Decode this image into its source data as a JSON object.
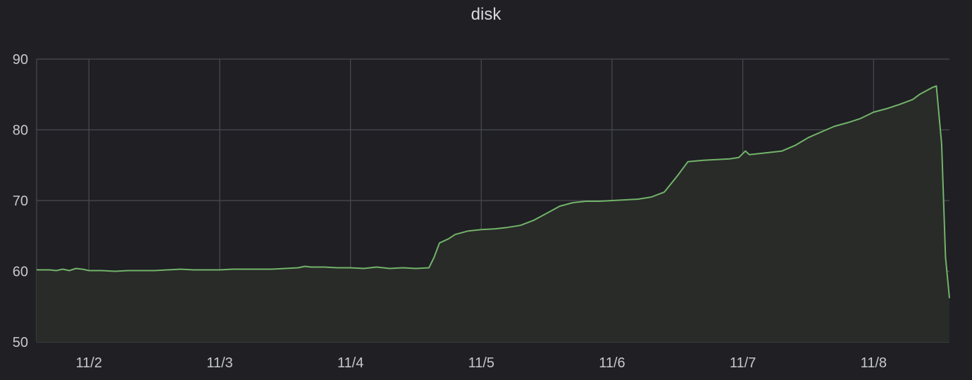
{
  "panel": {
    "title": "disk"
  },
  "colors": {
    "background": "#1f1f24",
    "grid": "#4a4b50",
    "text": "#c7c8cc",
    "series": "#73b36a",
    "area": "#282b28"
  },
  "chart_data": {
    "type": "area",
    "title": "disk",
    "xlabel": "",
    "ylabel": "",
    "ylim": [
      50,
      90
    ],
    "xlim": [
      1.6,
      8.58
    ],
    "y_ticks": [
      90,
      80,
      70,
      60,
      50
    ],
    "x_ticks": [
      {
        "value": 2,
        "label": "11/2"
      },
      {
        "value": 3,
        "label": "11/3"
      },
      {
        "value": 4,
        "label": "11/4"
      },
      {
        "value": 5,
        "label": "11/5"
      },
      {
        "value": 6,
        "label": "11/6"
      },
      {
        "value": 7,
        "label": "11/7"
      },
      {
        "value": 8,
        "label": "11/8"
      }
    ],
    "grid": true,
    "legend": "none",
    "series": [
      {
        "points": [
          [
            1.6,
            60.2
          ],
          [
            1.65,
            60.2
          ],
          [
            1.7,
            60.2
          ],
          [
            1.75,
            60.1
          ],
          [
            1.8,
            60.3
          ],
          [
            1.85,
            60.1
          ],
          [
            1.9,
            60.4
          ],
          [
            1.95,
            60.3
          ],
          [
            2.0,
            60.1
          ],
          [
            2.1,
            60.1
          ],
          [
            2.2,
            60.0
          ],
          [
            2.3,
            60.1
          ],
          [
            2.4,
            60.1
          ],
          [
            2.5,
            60.1
          ],
          [
            2.6,
            60.2
          ],
          [
            2.7,
            60.3
          ],
          [
            2.8,
            60.2
          ],
          [
            2.9,
            60.2
          ],
          [
            3.0,
            60.2
          ],
          [
            3.1,
            60.3
          ],
          [
            3.2,
            60.3
          ],
          [
            3.3,
            60.3
          ],
          [
            3.4,
            60.3
          ],
          [
            3.5,
            60.4
          ],
          [
            3.6,
            60.5
          ],
          [
            3.65,
            60.7
          ],
          [
            3.7,
            60.6
          ],
          [
            3.8,
            60.6
          ],
          [
            3.9,
            60.5
          ],
          [
            4.0,
            60.5
          ],
          [
            4.1,
            60.4
          ],
          [
            4.2,
            60.6
          ],
          [
            4.3,
            60.4
          ],
          [
            4.4,
            60.5
          ],
          [
            4.5,
            60.4
          ],
          [
            4.6,
            60.5
          ],
          [
            4.64,
            62.0
          ],
          [
            4.68,
            64.0
          ],
          [
            4.75,
            64.6
          ],
          [
            4.8,
            65.2
          ],
          [
            4.9,
            65.7
          ],
          [
            5.0,
            65.9
          ],
          [
            5.1,
            66.0
          ],
          [
            5.2,
            66.2
          ],
          [
            5.3,
            66.5
          ],
          [
            5.4,
            67.2
          ],
          [
            5.5,
            68.2
          ],
          [
            5.6,
            69.2
          ],
          [
            5.7,
            69.7
          ],
          [
            5.8,
            69.9
          ],
          [
            5.9,
            69.9
          ],
          [
            6.0,
            70.0
          ],
          [
            6.1,
            70.1
          ],
          [
            6.2,
            70.2
          ],
          [
            6.3,
            70.5
          ],
          [
            6.4,
            71.2
          ],
          [
            6.5,
            73.5
          ],
          [
            6.58,
            75.5
          ],
          [
            6.7,
            75.7
          ],
          [
            6.8,
            75.8
          ],
          [
            6.9,
            75.9
          ],
          [
            6.97,
            76.1
          ],
          [
            7.02,
            77.0
          ],
          [
            7.05,
            76.5
          ],
          [
            7.15,
            76.7
          ],
          [
            7.3,
            77.0
          ],
          [
            7.4,
            77.8
          ],
          [
            7.5,
            78.9
          ],
          [
            7.6,
            79.7
          ],
          [
            7.7,
            80.5
          ],
          [
            7.8,
            81.0
          ],
          [
            7.9,
            81.6
          ],
          [
            8.0,
            82.5
          ],
          [
            8.1,
            83.0
          ],
          [
            8.2,
            83.6
          ],
          [
            8.3,
            84.3
          ],
          [
            8.35,
            85.0
          ],
          [
            8.4,
            85.5
          ],
          [
            8.45,
            86.0
          ],
          [
            8.48,
            86.2
          ],
          [
            8.52,
            78.0
          ],
          [
            8.55,
            62.0
          ],
          [
            8.58,
            56.2
          ]
        ]
      }
    ]
  }
}
